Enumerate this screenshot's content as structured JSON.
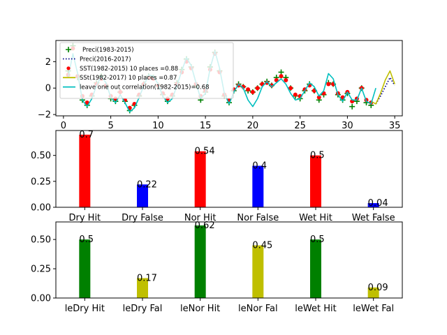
{
  "chart_data": [
    {
      "type": "line",
      "xlim": [
        -0.8,
        35.8
      ],
      "ylim": [
        -2.1,
        3.6
      ],
      "xticks": [
        0,
        5,
        10,
        15,
        20,
        25,
        30,
        35
      ],
      "yticks": [
        -2,
        0,
        2
      ],
      "legend_position": "top-left",
      "series": [
        {
          "name": "Preci(1983-2015)",
          "marker": "plus",
          "color": "#008000",
          "x": [
            0.5,
            1,
            1.5,
            2,
            2.5,
            3,
            3.5,
            4,
            4.5,
            5,
            5.5,
            6,
            6.5,
            7,
            7.5,
            8,
            8.5,
            9,
            9.5,
            10,
            10.5,
            11,
            11.5,
            12,
            12.5,
            13,
            13.5,
            14,
            14.5,
            15,
            15.5,
            16,
            16.5,
            17,
            17.5,
            18,
            18.5,
            19,
            19.5,
            20,
            20.5,
            21,
            21.5,
            22,
            22.5,
            23,
            23.5,
            24,
            24.5,
            25,
            25.5,
            26,
            26.5,
            27,
            27.5,
            28,
            28.5,
            29,
            29.5,
            30,
            30.5,
            31,
            31.5,
            32,
            32.5
          ],
          "y": [
            1.3,
            3.2,
            0.8,
            -0.9,
            -1.3,
            -0.6,
            0.4,
            0.9,
            0.2,
            -0.8,
            -1.0,
            -0.3,
            -1.0,
            -1.7,
            -1.3,
            -0.6,
            0.3,
            0.9,
            0.8,
            0.2,
            -0.5,
            -1.0,
            -0.6,
            0.4,
            1.4,
            2.2,
            1.6,
            0.2,
            -0.9,
            -0.3,
            1.6,
            2.7,
            1.3,
            -0.6,
            -1.1,
            -0.2,
            0.3,
            0.1,
            -0.2,
            -0.3,
            0.0,
            0.3,
            0.5,
            0.2,
            0.8,
            1.2,
            0.8,
            0.0,
            -0.6,
            -0.8,
            -0.2,
            0.3,
            -0.2,
            -0.9,
            -0.5,
            0.4,
            0.3,
            -0.5,
            -0.9,
            -0.4,
            -1.4,
            -1.0,
            0.0,
            -1.1,
            -1.3
          ]
        },
        {
          "name": "Preci(2016-2017)",
          "marker": "dotted-line",
          "color": "#00008b",
          "x": [
            33,
            33.5,
            34,
            34.5,
            35
          ],
          "y": [
            -1.2,
            -0.6,
            0.1,
            0.8,
            0.2
          ]
        },
        {
          "name": "SST(1982-2015) 10 places =0.88",
          "marker": "dot",
          "color": "#ff0000",
          "x": [
            0.5,
            1,
            1.5,
            2,
            2.5,
            3,
            3.5,
            4,
            4.5,
            5,
            5.5,
            6,
            6.5,
            7,
            7.5,
            8,
            8.5,
            9,
            9.5,
            10,
            10.5,
            11,
            11.5,
            12,
            12.5,
            13,
            13.5,
            14,
            14.5,
            15,
            15.5,
            16,
            16.5,
            17,
            17.5,
            18,
            18.5,
            19,
            19.5,
            20,
            20.5,
            21,
            21.5,
            22,
            22.5,
            23,
            23.5,
            24,
            24.5,
            25,
            25.5,
            26,
            26.5,
            27,
            27.5,
            28,
            28.5,
            29,
            29.5,
            30,
            30.5,
            31,
            31.5,
            32,
            32.5
          ],
          "y": [
            1.0,
            3.0,
            0.9,
            -0.6,
            -1.1,
            -0.5,
            0.3,
            0.7,
            0.2,
            -0.6,
            -0.8,
            -0.3,
            -0.9,
            -1.5,
            -1.2,
            -0.5,
            0.3,
            0.8,
            0.7,
            0.2,
            -0.4,
            -0.8,
            -0.5,
            0.3,
            1.2,
            2.0,
            1.5,
            0.3,
            -0.6,
            -0.2,
            1.4,
            2.6,
            1.2,
            -0.5,
            -0.9,
            -0.1,
            0.2,
            0.1,
            -0.1,
            -0.3,
            0.0,
            0.3,
            0.4,
            0.2,
            0.6,
            0.9,
            0.6,
            0.0,
            -0.5,
            -0.6,
            -0.1,
            0.2,
            -0.2,
            -0.7,
            -0.4,
            0.3,
            0.3,
            -0.4,
            -0.7,
            -0.3,
            -1.0,
            -0.8,
            0.0,
            -0.9,
            -1.1
          ]
        },
        {
          "name": "SSt(1982-2017) 10 places =0.87",
          "marker": "line",
          "color": "#bfbf00",
          "x": [
            32.5,
            33,
            33.5,
            34,
            34.5,
            35
          ],
          "y": [
            -1.0,
            -1.2,
            -0.4,
            0.6,
            1.3,
            0.3
          ]
        },
        {
          "name": "leave one out correlation(1982-2015)=0.68",
          "marker": "line",
          "color": "#00bfbf",
          "x": [
            0.5,
            1,
            1.5,
            2,
            2.5,
            3,
            3.5,
            4,
            4.5,
            5,
            5.5,
            6,
            6.5,
            7,
            7.5,
            8,
            8.5,
            9,
            9.5,
            10,
            10.5,
            11,
            11.5,
            12,
            12.5,
            13,
            13.5,
            14,
            14.5,
            15,
            15.5,
            16,
            16.5,
            17,
            17.5,
            18,
            18.5,
            19,
            19.5,
            20,
            20.5,
            21,
            21.5,
            22,
            22.5,
            23,
            23.5,
            24,
            24.5,
            25,
            25.5,
            26,
            26.5,
            27,
            27.5,
            28,
            28.5,
            29,
            29.5,
            30,
            30.5,
            31,
            31.5,
            32,
            32.5,
            33
          ],
          "y": [
            0.8,
            2.6,
            1.1,
            -0.9,
            -1.4,
            -0.8,
            0.2,
            0.9,
            0.4,
            -0.7,
            -1.1,
            -0.5,
            -1.1,
            -1.8,
            -1.5,
            -0.7,
            0.2,
            1.0,
            0.9,
            0.3,
            -0.6,
            -1.1,
            -0.8,
            0.2,
            1.3,
            2.3,
            1.7,
            0.4,
            -0.8,
            -0.4,
            1.5,
            2.8,
            1.5,
            -0.4,
            -1.2,
            -0.3,
            0.3,
            0.0,
            -0.9,
            -1.4,
            -0.8,
            0.1,
            0.5,
            0.1,
            0.4,
            0.7,
            0.3,
            -0.4,
            -0.9,
            -0.8,
            -0.2,
            0.4,
            0.1,
            -0.6,
            -0.2,
            1.1,
            0.7,
            -0.5,
            -1.0,
            -0.3,
            -0.9,
            -0.9,
            0.0,
            -1.0,
            -1.2,
            0.0
          ]
        }
      ]
    },
    {
      "type": "bar",
      "categories": [
        "Dry Hit",
        "Dry False",
        "Nor Hit",
        "Nor False",
        "Wet Hit",
        "Wet False"
      ],
      "values": [
        0.7,
        0.22,
        0.54,
        0.4,
        0.5,
        0.04
      ],
      "value_labels": [
        "0.7",
        "0.22",
        "0.54",
        "0.4",
        "0.5",
        "0.04"
      ],
      "colors": [
        "#ff0000",
        "#0000ff",
        "#ff0000",
        "#0000ff",
        "#ff0000",
        "#0000ff"
      ],
      "ylim": [
        0,
        0.74
      ],
      "yticks": [
        "0.00",
        "0.25",
        "0.50"
      ]
    },
    {
      "type": "bar",
      "categories": [
        "leDry Hit",
        "leDry Fal",
        "leNor Hit",
        "leNor Fal",
        "leWet Hit",
        "leWet Fal"
      ],
      "values": [
        0.5,
        0.17,
        0.62,
        0.45,
        0.5,
        0.09
      ],
      "value_labels": [
        "0.5",
        "0.17",
        "0.62",
        "0.45",
        "0.5",
        "0.09"
      ],
      "colors": [
        "#008000",
        "#bfbf00",
        "#008000",
        "#bfbf00",
        "#008000",
        "#bfbf00"
      ],
      "ylim": [
        0,
        0.65
      ],
      "yticks": [
        "0.00",
        "0.25",
        "0.50"
      ]
    }
  ]
}
